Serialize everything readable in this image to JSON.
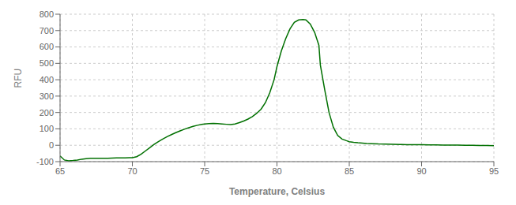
{
  "chart_data": {
    "type": "line",
    "xlabel": "Temperature, Celsius",
    "ylabel": "RFU",
    "xlim": [
      65,
      95
    ],
    "ylim": [
      -100,
      800
    ],
    "xticks": [
      65,
      70,
      75,
      80,
      85,
      90,
      95
    ],
    "yticks": [
      -100,
      0,
      100,
      200,
      300,
      400,
      500,
      600,
      700,
      800
    ],
    "grid": true,
    "color": "#007000",
    "x": [
      65.0,
      65.3,
      65.6,
      65.9,
      66.2,
      66.5,
      66.8,
      67.1,
      67.4,
      67.7,
      68.0,
      68.3,
      68.6,
      68.9,
      69.2,
      69.5,
      69.8,
      70.0,
      70.3,
      70.6,
      70.9,
      71.2,
      71.5,
      71.8,
      72.1,
      72.4,
      72.7,
      73.0,
      73.3,
      73.6,
      73.9,
      74.2,
      74.5,
      74.8,
      75.0,
      75.3,
      75.6,
      75.9,
      76.2,
      76.5,
      76.8,
      77.1,
      77.4,
      77.7,
      78.0,
      78.3,
      78.6,
      78.9,
      79.2,
      79.5,
      79.8,
      80.0,
      80.3,
      80.6,
      80.9,
      81.2,
      81.5,
      81.8,
      82.0,
      82.3,
      82.6,
      82.9,
      83.0,
      83.3,
      83.6,
      83.9,
      84.2,
      84.5,
      84.8,
      85.0,
      85.3,
      85.6,
      85.9,
      86.2,
      86.5,
      87.0,
      87.5,
      88.0,
      88.5,
      89.0,
      89.5,
      90.0,
      90.5,
      91.0,
      91.5,
      92.0,
      92.5,
      93.0,
      93.5,
      94.0,
      94.5,
      95.0
    ],
    "values": [
      -65,
      -90,
      -95,
      -93,
      -90,
      -85,
      -82,
      -80,
      -80,
      -79,
      -79,
      -79,
      -78,
      -77,
      -77,
      -77,
      -76,
      -76,
      -70,
      -55,
      -35,
      -15,
      5,
      22,
      38,
      52,
      65,
      77,
      88,
      98,
      107,
      115,
      122,
      127,
      130,
      132,
      133,
      132,
      130,
      128,
      126,
      130,
      138,
      148,
      160,
      175,
      195,
      220,
      260,
      320,
      400,
      480,
      575,
      650,
      710,
      750,
      765,
      768,
      765,
      740,
      690,
      610,
      490,
      340,
      200,
      110,
      60,
      38,
      28,
      22,
      18,
      15,
      13,
      11,
      10,
      8,
      7,
      6,
      5,
      4,
      3,
      3,
      2,
      2,
      1,
      1,
      1,
      0,
      0,
      -1,
      -1,
      -2
    ]
  }
}
